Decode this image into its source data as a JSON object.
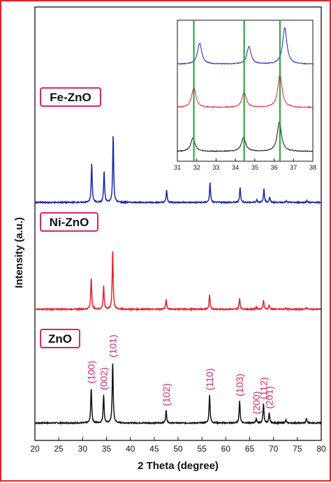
{
  "chart_data": {
    "type": "line",
    "xlabel": "2 Theta (degree)",
    "ylabel": "Intensity (a.u.)",
    "xlim": [
      20,
      80
    ],
    "xticks": [
      "20",
      "25",
      "30",
      "35",
      "40",
      "45",
      "50",
      "55",
      "60",
      "65",
      "70",
      "75",
      "80"
    ],
    "grid": false,
    "legend": "none",
    "series": [
      {
        "name": "ZnO",
        "color": "#111111",
        "peaks": [
          {
            "x": 31.8,
            "h": 0.47,
            "hkl": "(100)"
          },
          {
            "x": 34.4,
            "h": 0.38,
            "hkl": "(002)"
          },
          {
            "x": 36.3,
            "h": 0.82,
            "hkl": "(101)"
          },
          {
            "x": 47.5,
            "h": 0.17,
            "hkl": "(102)"
          },
          {
            "x": 56.6,
            "h": 0.38,
            "hkl": "(110)"
          },
          {
            "x": 62.9,
            "h": 0.3,
            "hkl": "(103)"
          },
          {
            "x": 66.4,
            "h": 0.06,
            "hkl": "(200)"
          },
          {
            "x": 67.9,
            "h": 0.26,
            "hkl": "(112)"
          },
          {
            "x": 69.1,
            "h": 0.13,
            "hkl": "(201)"
          },
          {
            "x": 72.6,
            "h": 0.04
          },
          {
            "x": 76.9,
            "h": 0.06
          }
        ]
      },
      {
        "name": "Ni-ZnO",
        "color": "#e8202a",
        "peaks": [
          {
            "x": 31.8,
            "h": 0.52
          },
          {
            "x": 34.4,
            "h": 0.38
          },
          {
            "x": 36.3,
            "h": 0.97
          },
          {
            "x": 47.5,
            "h": 0.16
          },
          {
            "x": 56.6,
            "h": 0.23
          },
          {
            "x": 62.9,
            "h": 0.18
          },
          {
            "x": 66.4,
            "h": 0.04
          },
          {
            "x": 67.9,
            "h": 0.15
          },
          {
            "x": 69.1,
            "h": 0.07
          },
          {
            "x": 72.6,
            "h": 0.02
          },
          {
            "x": 76.9,
            "h": 0.03
          }
        ]
      },
      {
        "name": "Fe-ZnO",
        "color": "#1a2aa8",
        "peaks": [
          {
            "x": 31.9,
            "h": 0.58
          },
          {
            "x": 34.5,
            "h": 0.46
          },
          {
            "x": 36.4,
            "h": 0.99
          },
          {
            "x": 47.6,
            "h": 0.18
          },
          {
            "x": 56.7,
            "h": 0.29
          },
          {
            "x": 63.0,
            "h": 0.23
          },
          {
            "x": 66.5,
            "h": 0.04
          },
          {
            "x": 68.0,
            "h": 0.2
          },
          {
            "x": 69.2,
            "h": 0.08
          },
          {
            "x": 72.7,
            "h": 0.02
          },
          {
            "x": 77.0,
            "h": 0.03
          }
        ]
      }
    ],
    "inset": {
      "xlim": [
        31,
        38
      ],
      "xticks": [
        "31",
        "32",
        "33",
        "34",
        "35",
        "36",
        "37",
        "38"
      ],
      "reference_lines_x": [
        31.85,
        34.45,
        36.3
      ],
      "reference_line_color": "#1f9e3a",
      "series": [
        {
          "name": "Fe-ZnO",
          "color": "#1a2aa8",
          "peaks": [
            {
              "x": 32.15,
              "h": 0.55
            },
            {
              "x": 34.7,
              "h": 0.45
            },
            {
              "x": 36.55,
              "h": 0.95
            }
          ]
        },
        {
          "name": "Ni-ZnO",
          "color": "#e8202a",
          "peaks": [
            {
              "x": 31.85,
              "h": 0.55
            },
            {
              "x": 34.45,
              "h": 0.42
            },
            {
              "x": 36.3,
              "h": 0.92
            }
          ]
        },
        {
          "name": "ZnO",
          "color": "#111111",
          "peaks": [
            {
              "x": 31.8,
              "h": 0.38
            },
            {
              "x": 34.42,
              "h": 0.4
            },
            {
              "x": 36.27,
              "h": 0.85
            }
          ]
        }
      ]
    }
  }
}
